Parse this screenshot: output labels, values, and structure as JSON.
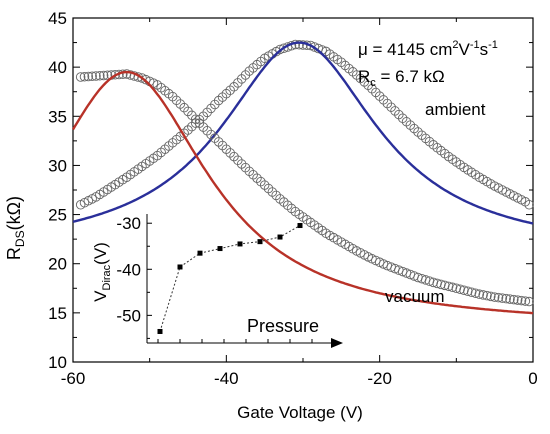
{
  "chart_data": [
    {
      "type": "scatter",
      "xlabel": "Gate Voltage (V)",
      "ylabel_main": "R",
      "ylabel_sub": "DS",
      "ylabel_unit": "(kΩ)",
      "xlim": [
        -60,
        0
      ],
      "ylim": [
        10,
        45
      ],
      "xticks": [
        "-60",
        "-40",
        "-20",
        "0"
      ],
      "yticks": [
        "10",
        "15",
        "20",
        "25",
        "30",
        "35",
        "40",
        "45"
      ],
      "annotations": {
        "mobility_prefix": "μ = 4145 cm",
        "mobility_sup1": "2",
        "mobility_mid": "V",
        "mobility_sup2": "-1",
        "mobility_s": "s",
        "mobility_sup3": "-1",
        "rc_main": "R",
        "rc_sub": "c",
        "rc_value": " = 6.7 kΩ"
      },
      "series": [
        {
          "name": "ambient",
          "color": "#2a2f9a",
          "fit": {
            "peak_x": -30.5,
            "peak_y": 42.5,
            "baseline": 21.0,
            "gamma": 12.5
          },
          "points": [
            [
              -59,
              26.0
            ],
            [
              -57,
              26.8
            ],
            [
              -55,
              27.8
            ],
            [
              -53,
              28.8
            ],
            [
              -51,
              29.9
            ],
            [
              -49,
              31.0
            ],
            [
              -47,
              32.3
            ],
            [
              -45,
              33.6
            ],
            [
              -43,
              35.0
            ],
            [
              -41,
              36.6
            ],
            [
              -39,
              38.0
            ],
            [
              -37,
              39.6
            ],
            [
              -35,
              40.9
            ],
            [
              -33,
              41.8
            ],
            [
              -31,
              42.3
            ],
            [
              -29,
              42.2
            ],
            [
              -27,
              41.6
            ],
            [
              -25,
              40.5
            ],
            [
              -23,
              39.2
            ],
            [
              -21,
              37.8
            ],
            [
              -19,
              36.3
            ],
            [
              -17,
              34.8
            ],
            [
              -15,
              33.4
            ],
            [
              -13,
              32.1
            ],
            [
              -11,
              30.9
            ],
            [
              -9,
              29.8
            ],
            [
              -7,
              28.8
            ],
            [
              -5,
              27.9
            ],
            [
              -3,
              27.1
            ],
            [
              -1,
              26.3
            ],
            [
              0,
              25.7
            ]
          ]
        },
        {
          "name": "vacuum",
          "color": "#b83228",
          "fit": {
            "peak_x": -53,
            "peak_y": 39.5,
            "baseline": 13.5,
            "gamma": 13.0
          },
          "points": [
            [
              -59,
              39.0
            ],
            [
              -57,
              39.1
            ],
            [
              -55,
              39.2
            ],
            [
              -53,
              39.3
            ],
            [
              -51,
              38.9
            ],
            [
              -49,
              38.2
            ],
            [
              -47,
              37.0
            ],
            [
              -45,
              35.5
            ],
            [
              -43,
              33.9
            ],
            [
              -41,
              32.4
            ],
            [
              -39,
              30.9
            ],
            [
              -37,
              29.4
            ],
            [
              -35,
              28.0
            ],
            [
              -33,
              26.6
            ],
            [
              -31,
              25.3
            ],
            [
              -29,
              24.2
            ],
            [
              -27,
              23.1
            ],
            [
              -25,
              22.2
            ],
            [
              -23,
              21.3
            ],
            [
              -21,
              20.5
            ],
            [
              -19,
              19.8
            ],
            [
              -17,
              19.2
            ],
            [
              -15,
              18.6
            ],
            [
              -13,
              18.1
            ],
            [
              -11,
              17.7
            ],
            [
              -9,
              17.3
            ],
            [
              -7,
              16.9
            ],
            [
              -5,
              16.6
            ],
            [
              -3,
              16.4
            ],
            [
              -1,
              16.2
            ],
            [
              0,
              16.1
            ]
          ]
        }
      ]
    },
    {
      "type": "line",
      "xlabel": "Pressure",
      "ylabel_main": "V",
      "ylabel_sub": "Dirac",
      "ylabel_unit": "(V)",
      "ylim": [
        -56,
        -28
      ],
      "yticks": [
        "-30",
        "-40",
        "-50"
      ],
      "x": [
        0,
        1,
        2,
        3,
        4,
        5,
        6,
        7
      ],
      "values": [
        -53.5,
        -39.5,
        -36.5,
        -35.5,
        -34.5,
        -34.0,
        -33.0,
        -30.5
      ]
    }
  ]
}
